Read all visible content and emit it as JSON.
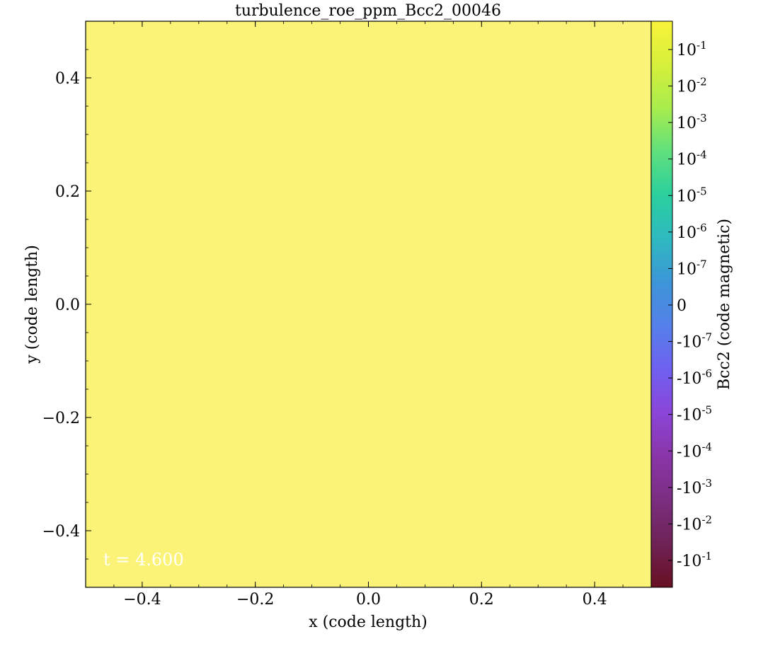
{
  "chart_data": {
    "type": "heatmap",
    "title": "turbulence_roe_ppm_Bcc2_00046",
    "xlabel": "x  (code length)",
    "ylabel": "y  (code length)",
    "xlim": [
      -0.5,
      0.5
    ],
    "ylim": [
      -0.5,
      0.5
    ],
    "x_ticks": [
      {
        "value": -0.4,
        "label": "−0.4"
      },
      {
        "value": -0.2,
        "label": "−0.2"
      },
      {
        "value": 0.0,
        "label": "0.0"
      },
      {
        "value": 0.2,
        "label": "0.2"
      },
      {
        "value": 0.4,
        "label": "0.4"
      }
    ],
    "y_ticks": [
      {
        "value": -0.4,
        "label": "−0.4"
      },
      {
        "value": -0.2,
        "label": "−0.2"
      },
      {
        "value": 0.0,
        "label": "0.0"
      },
      {
        "value": 0.2,
        "label": "0.2"
      },
      {
        "value": 0.4,
        "label": "0.4"
      }
    ],
    "annotation": "t = 4.600",
    "grid": false,
    "colorbar": {
      "label": "Bcc2  (code magnetic)",
      "scale": "symlog",
      "colormap": "turbo-like",
      "ticks": [
        {
          "base": "10",
          "exp": "-1"
        },
        {
          "base": "10",
          "exp": "-2"
        },
        {
          "base": "10",
          "exp": "-3"
        },
        {
          "base": "10",
          "exp": "-4"
        },
        {
          "base": "10",
          "exp": "-5"
        },
        {
          "base": "10",
          "exp": "-6"
        },
        {
          "base": "10",
          "exp": "-7"
        },
        {
          "base": "0",
          "exp": ""
        },
        {
          "base": "-10",
          "exp": "-7"
        },
        {
          "base": "-10",
          "exp": "-6"
        },
        {
          "base": "-10",
          "exp": "-5"
        },
        {
          "base": "-10",
          "exp": "-4"
        },
        {
          "base": "-10",
          "exp": "-3"
        },
        {
          "base": "-10",
          "exp": "-2"
        },
        {
          "base": "-10",
          "exp": "-1"
        }
      ],
      "colors": [
        "#f8f23a",
        "#d6f03b",
        "#a8ec4d",
        "#5fe07d",
        "#2bcf9e",
        "#2eb9c0",
        "#3d95d8",
        "#5580ea",
        "#6f60f0",
        "#8b45d8",
        "#8a35a8",
        "#7b2e80",
        "#6e2255",
        "#680f22"
      ]
    },
    "field_colors": {
      "positive": "#e8f040",
      "mid": "#a4e84e",
      "faint": "#5fdc8a",
      "near_zero": "#7a2c55",
      "negative": "#6e0f1c"
    }
  }
}
